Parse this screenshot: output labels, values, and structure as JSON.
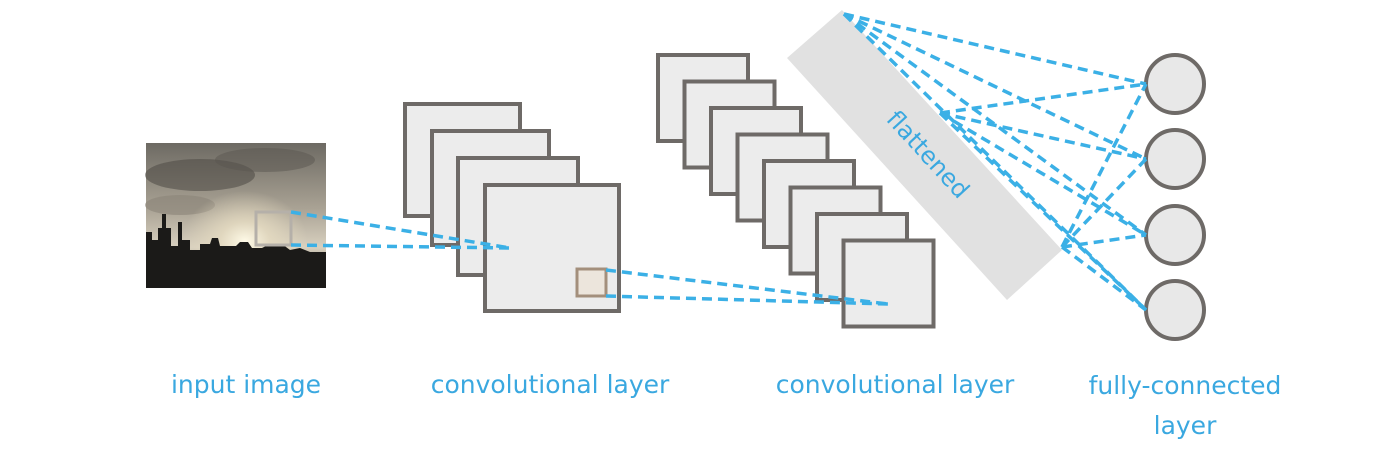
{
  "colors": {
    "accent": "#3bb0e6",
    "label": "#3aa8e0",
    "map_fill": "#ececec",
    "map_stroke": "#6e6a67",
    "band_fill": "#e1e1e1",
    "receptive_field": "#a38f7c"
  },
  "labels": {
    "input_image": "input image",
    "conv1": "convolutional layer",
    "conv2": "convolutional layer",
    "fully_connected": "fully-connected layer",
    "flattened": "flattened"
  },
  "structure": {
    "conv1_feature_maps": 4,
    "conv2_feature_maps": 8,
    "fc_neurons": 4
  },
  "input_image": {
    "description_icon": "city-skyline-photo"
  }
}
